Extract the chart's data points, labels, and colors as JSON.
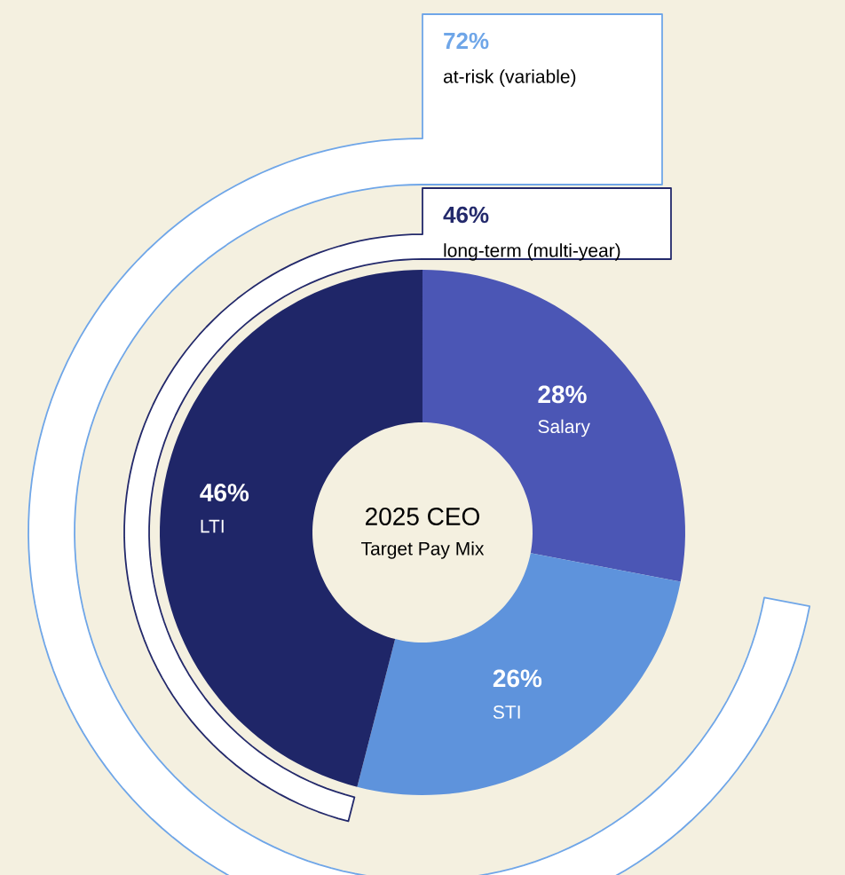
{
  "chart_data": {
    "type": "donut",
    "title": "2025 CEO",
    "subtitle": "Target Pay Mix",
    "categories": [
      "Salary",
      "STI",
      "LTI"
    ],
    "values": [
      28,
      26,
      46
    ],
    "colors": [
      "#4b56b5",
      "#5e93dc",
      "#1f2668"
    ],
    "value_labels": [
      "28%",
      "26%",
      "46%"
    ],
    "annotations": [
      "72%",
      "at-risk (variable)",
      "46%",
      "long-term (multi-year)"
    ]
  }
}
